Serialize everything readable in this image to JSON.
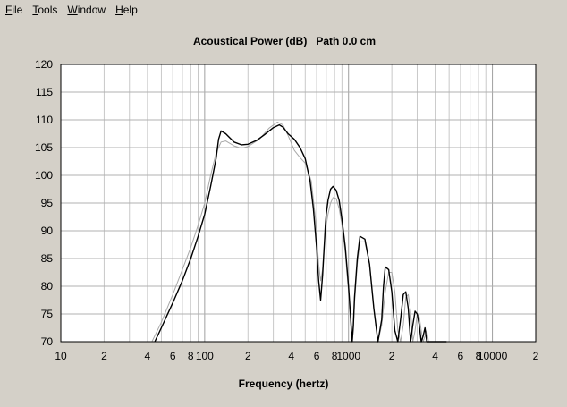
{
  "menu": {
    "items": [
      {
        "mnemonic": "F",
        "rest": "ile"
      },
      {
        "mnemonic": "T",
        "rest": "ools"
      },
      {
        "mnemonic": "W",
        "rest": "indow"
      },
      {
        "mnemonic": "H",
        "rest": "elp"
      }
    ]
  },
  "chart_data": {
    "type": "line",
    "title": "Acoustical Power (dB)   Path 0.0 cm",
    "xlabel": "Frequency (hertz)",
    "ylabel": "",
    "x_scale": "log",
    "xlim": [
      10,
      20000
    ],
    "ylim": [
      70,
      120
    ],
    "grid": true,
    "x_tick_labels": [
      {
        "value": 10,
        "label": "10"
      },
      {
        "value": 20,
        "label": "2"
      },
      {
        "value": 40,
        "label": "4"
      },
      {
        "value": 60,
        "label": "6"
      },
      {
        "value": 80,
        "label": "8"
      },
      {
        "value": 100,
        "label": "100"
      },
      {
        "value": 200,
        "label": "2"
      },
      {
        "value": 400,
        "label": "4"
      },
      {
        "value": 600,
        "label": "6"
      },
      {
        "value": 800,
        "label": "8"
      },
      {
        "value": 1000,
        "label": "1000"
      },
      {
        "value": 2000,
        "label": "2"
      },
      {
        "value": 4000,
        "label": "4"
      },
      {
        "value": 6000,
        "label": "6"
      },
      {
        "value": 8000,
        "label": "8"
      },
      {
        "value": 10000,
        "label": "10000"
      },
      {
        "value": 20000,
        "label": "2"
      }
    ],
    "y_ticks": [
      70,
      75,
      80,
      85,
      90,
      95,
      100,
      105,
      110,
      115,
      120
    ],
    "colors": {
      "series_primary": "#000000",
      "series_secondary": "#a8a8a8",
      "grid": "#c8c8c8"
    },
    "series": [
      {
        "x": [
          45,
          50,
          60,
          70,
          80,
          90,
          100,
          110,
          120,
          125,
          130,
          140,
          160,
          180,
          200,
          230,
          260,
          300,
          330,
          350,
          380,
          420,
          460,
          500,
          540,
          570,
          600,
          620,
          640,
          660,
          680,
          690,
          700,
          720,
          750,
          780,
          820,
          860,
          900,
          950,
          1000,
          1030,
          1060,
          1080,
          1100,
          1150,
          1200,
          1300,
          1400,
          1500,
          1600,
          1700,
          1750,
          1800,
          1900,
          2000,
          2100,
          2200,
          2300,
          2400,
          2500,
          2600,
          2700,
          2800,
          2900,
          3000,
          3100,
          3200,
          3300,
          3400,
          3500,
          3600,
          3700,
          3800,
          3900,
          4000,
          4100,
          4200,
          4300,
          4400,
          4500,
          4600,
          4800
        ],
        "y": [
          70,
          72.5,
          77,
          81,
          85,
          89,
          93,
          98,
          103,
          106.5,
          108,
          107.5,
          106,
          105.5,
          105.6,
          106.3,
          107.3,
          108.6,
          109.1,
          108.7,
          107.5,
          106.5,
          105,
          103,
          99,
          94,
          87,
          81,
          77.5,
          82,
          88,
          91,
          93,
          95.5,
          97.5,
          98,
          97.3,
          95.5,
          92,
          87,
          80,
          75,
          70,
          73,
          78,
          85,
          89,
          88.5,
          84,
          76,
          70,
          74,
          80,
          83.5,
          83,
          79,
          72,
          70,
          74,
          78.5,
          79,
          76,
          70,
          73,
          75.5,
          75,
          73,
          70,
          71,
          72.5,
          70,
          70,
          70,
          70,
          70,
          70,
          70,
          70,
          70,
          70,
          70,
          70,
          70
        ]
      },
      {
        "x": [
          43,
          50,
          60,
          70,
          80,
          90,
          100,
          110,
          120,
          130,
          140,
          160,
          180,
          200,
          240,
          280,
          320,
          350,
          380,
          420,
          460,
          500,
          550,
          590,
          620,
          640,
          660,
          680,
          700,
          720,
          750,
          780,
          820,
          860,
          900,
          950,
          1000,
          1040,
          1060,
          1080,
          1100,
          1150,
          1200,
          1300,
          1400,
          1500,
          1600,
          1700,
          1800,
          1900,
          2000,
          2100,
          2200,
          2300,
          2400,
          2500,
          2600,
          2700,
          2800,
          2900,
          3000,
          3100,
          3200,
          3300,
          3400,
          3500,
          3600,
          3700
        ],
        "y": [
          70,
          73.5,
          78.5,
          83,
          87,
          91,
          95,
          100,
          104,
          106,
          106.2,
          105.3,
          104.9,
          105.2,
          106.5,
          108.5,
          109.6,
          109.1,
          107.2,
          104.5,
          103.2,
          102.2,
          99,
          92,
          84,
          81,
          83,
          88,
          91,
          93,
          95,
          96,
          95.8,
          94,
          91,
          86,
          79,
          72,
          70,
          72,
          77,
          84,
          88,
          88,
          84,
          76,
          70,
          73,
          79,
          82.5,
          82.5,
          79,
          72,
          70,
          73,
          78,
          78.5,
          75.5,
          70,
          72,
          75,
          74.5,
          72,
          70,
          71,
          72,
          70,
          70
        ]
      }
    ]
  }
}
